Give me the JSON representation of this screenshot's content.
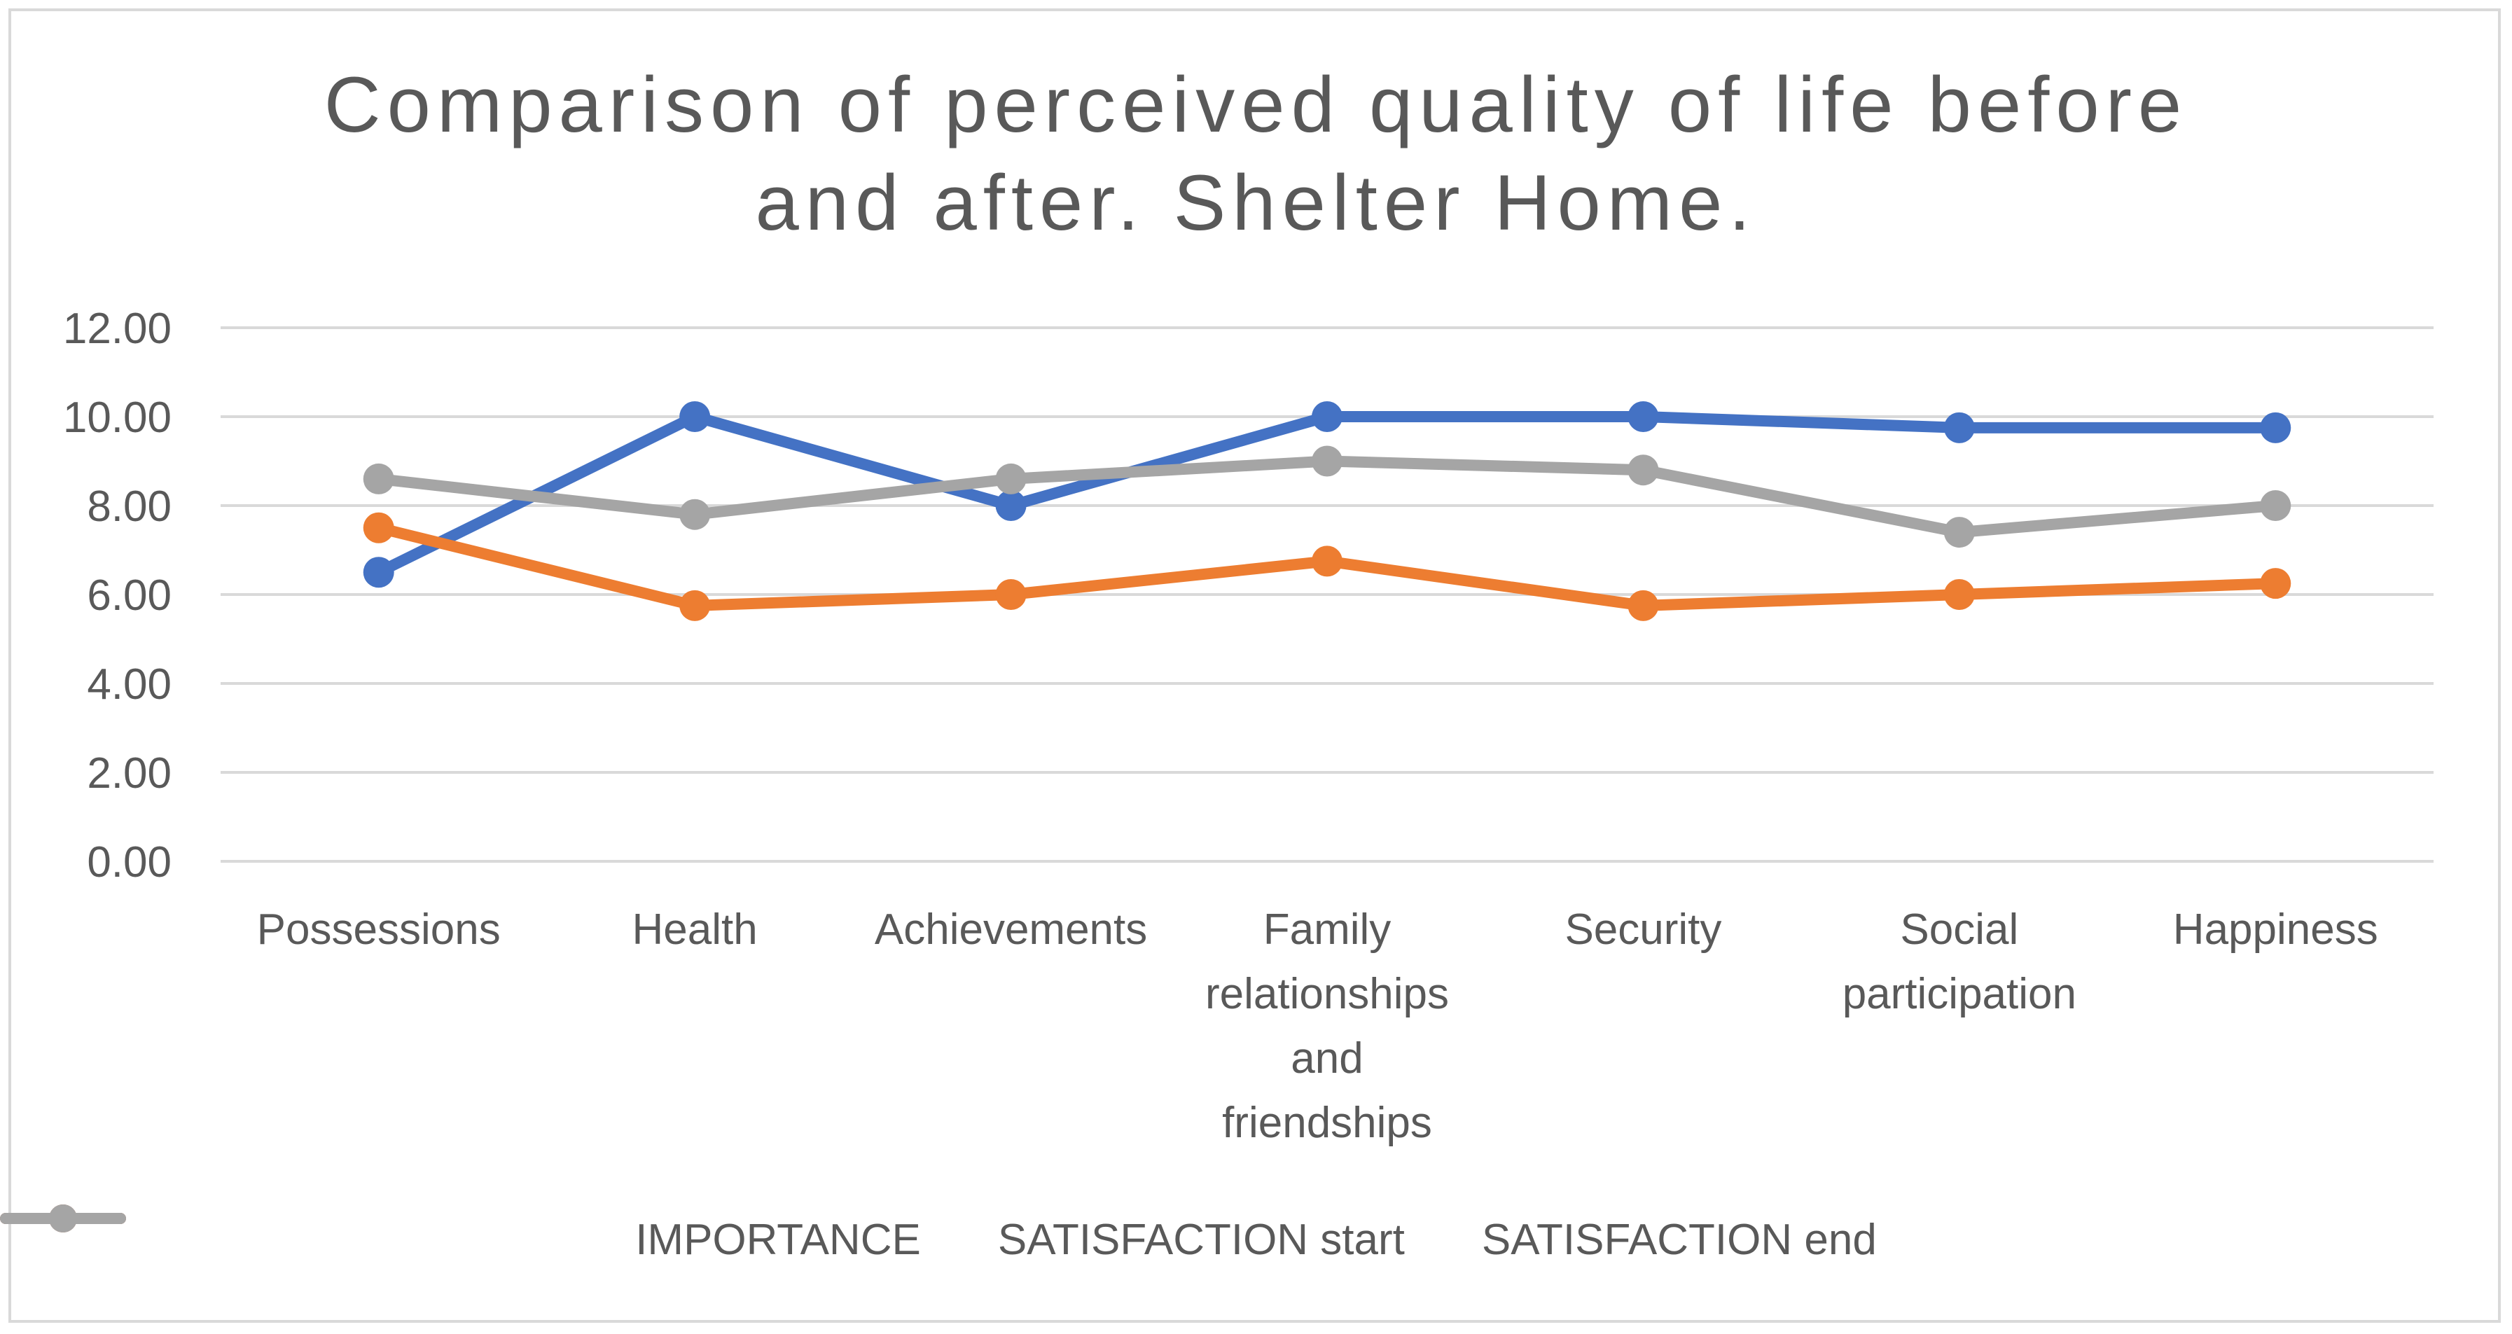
{
  "chart_data": {
    "type": "line",
    "title_lines": [
      "Comparison of perceived quality of life before",
      "and after. Shelter Home."
    ],
    "categories": [
      [
        "Possessions"
      ],
      [
        "Health"
      ],
      [
        "Achievements"
      ],
      [
        "Family",
        "relationships",
        "and",
        "friendships"
      ],
      [
        "Security"
      ],
      [
        "Social",
        "participation"
      ],
      [
        "Happiness"
      ]
    ],
    "yticks": [
      "0.00",
      "2.00",
      "4.00",
      "6.00",
      "8.00",
      "10.00",
      "12.00"
    ],
    "ylim": [
      0,
      12
    ],
    "grid": true,
    "legend_position": "bottom",
    "series": [
      {
        "name": "IMPORTANCE",
        "color": "#4472c4",
        "values": [
          6.5,
          10.0,
          8.0,
          10.0,
          10.0,
          9.75,
          9.75
        ]
      },
      {
        "name": "SATISFACTION start",
        "color": "#ed7d31",
        "values": [
          7.5,
          5.75,
          6.0,
          6.75,
          5.75,
          6.0,
          6.25
        ]
      },
      {
        "name": "SATISFACTION end",
        "color": "#a5a5a5",
        "values": [
          8.6,
          7.8,
          8.6,
          9.0,
          8.8,
          7.4,
          8.0
        ]
      }
    ]
  }
}
